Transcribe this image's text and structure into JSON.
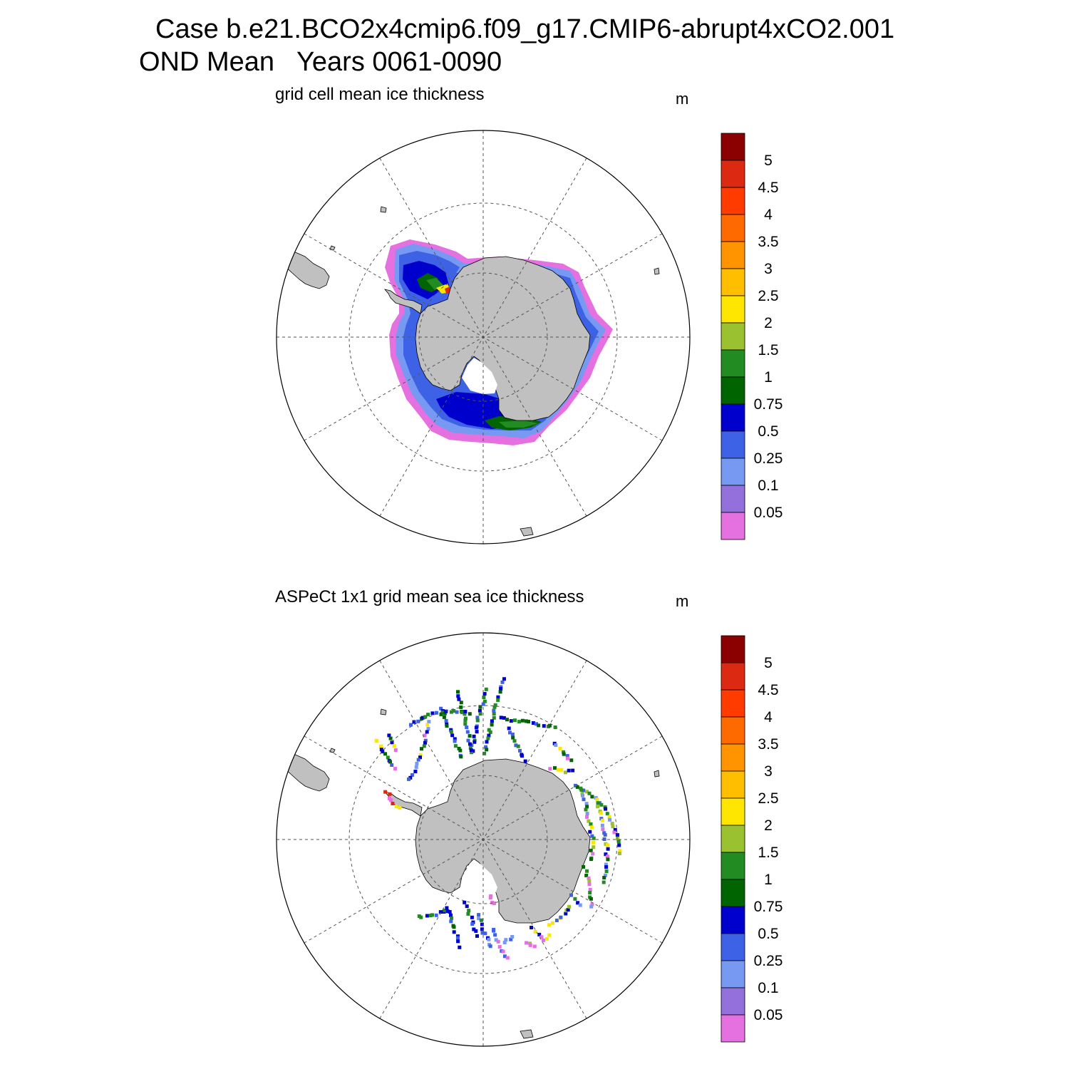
{
  "title": {
    "line1": "Case b.e21.BCO2x4cmip6.f09_g17.CMIP6-abrupt4xCO2.001",
    "line2": "OND Mean   Years 0061-0090"
  },
  "panels": [
    {
      "subtitle": "grid cell mean ice thickness",
      "units": "m"
    },
    {
      "subtitle": "ASPeCt 1x1 grid mean sea ice thickness",
      "units": "m"
    }
  ],
  "colorbar": {
    "labels": [
      "5",
      "4.5",
      "4",
      "3.5",
      "3",
      "2.5",
      "2",
      "1.5",
      "1",
      "0.75",
      "0.5",
      "0.25",
      "0.1",
      "0.05"
    ],
    "colors": [
      "#8b0000",
      "#dc2a12",
      "#ff3b00",
      "#ff6a00",
      "#ff9400",
      "#ffbf00",
      "#ffe600",
      "#9ac12f",
      "#228b22",
      "#006400",
      "#0000cd",
      "#3e62e6",
      "#7899f2",
      "#9370db",
      "#e570e0"
    ]
  },
  "map_colors": {
    "land": "#c0c0c0",
    "ocean": "#ffffff",
    "pink": "#e570e0",
    "lightblue": "#7899f2",
    "blue": "#3e62e6",
    "darkblue": "#0000cd",
    "darkgreen": "#006400",
    "green": "#228b22",
    "yellowgreen": "#9ac12f",
    "yellow": "#ffe600",
    "orange": "#ff9400",
    "red": "#dc2a12"
  }
}
